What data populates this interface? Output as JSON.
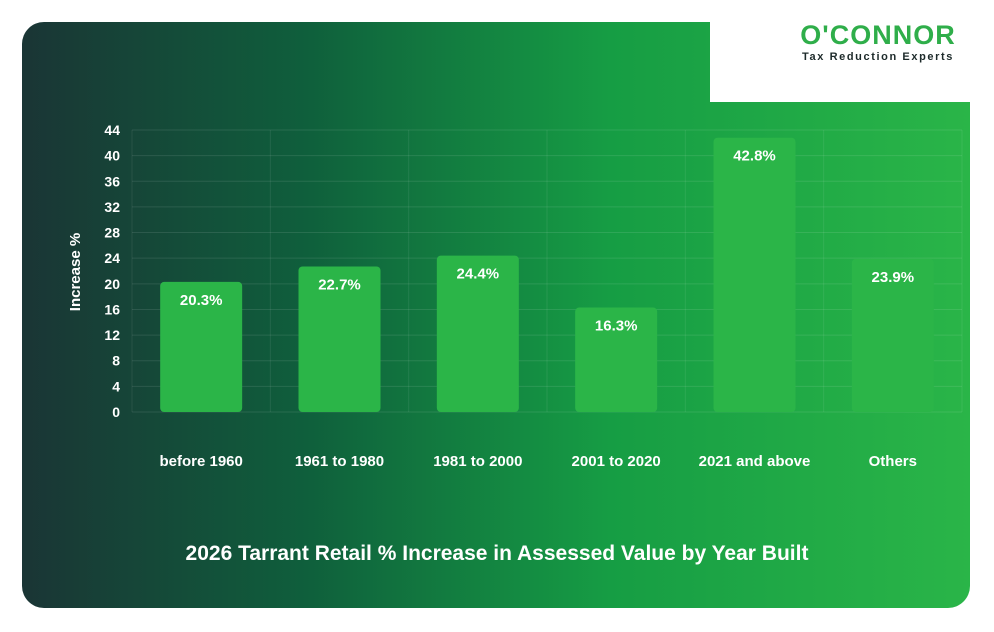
{
  "brand": {
    "name": "O'CONNOR",
    "tagline": "Tax Reduction Experts",
    "accent_color": "#2fae4a"
  },
  "chart_data": {
    "type": "bar",
    "title": "2026 Tarrant Retail % Increase in Assessed Value by Year Built",
    "xlabel": "",
    "ylabel": "Increase %",
    "ylim": [
      0,
      44
    ],
    "yticks": [
      0,
      4,
      8,
      12,
      16,
      20,
      24,
      28,
      32,
      36,
      40,
      44
    ],
    "grid": true,
    "legend": "none",
    "bar_color": "#2bb548",
    "categories": [
      "before 1960",
      "1961 to 1980",
      "1981 to 2000",
      "2001 to 2020",
      "2021 and above",
      "Others"
    ],
    "values": [
      20.3,
      22.7,
      24.4,
      16.3,
      42.8,
      23.9
    ],
    "value_labels": [
      "20.3%",
      "22.7%",
      "24.4%",
      "16.3%",
      "42.8%",
      "23.9%"
    ]
  }
}
